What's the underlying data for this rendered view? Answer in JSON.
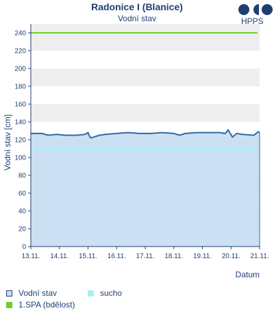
{
  "chart_data": {
    "type": "line",
    "title": "Radonice I (Blanice)",
    "subtitle": "Vodní stav",
    "xlabel": "Datum",
    "ylabel": "Vodní stav [cm]",
    "xlim": [
      0,
      8
    ],
    "ylim": [
      0,
      250
    ],
    "y_ticks": [
      0,
      20,
      40,
      60,
      80,
      100,
      120,
      140,
      160,
      180,
      200,
      220,
      240
    ],
    "x_tick_labels": [
      "13.11.",
      "14.11.",
      "15.11.",
      "16.11.",
      "17.11.",
      "18.11.",
      "19.11.",
      "20.11.",
      "21.11."
    ],
    "grid": "alternating horizontal bands",
    "series": [
      {
        "name": "Vodní stav",
        "color": "#2f6aa6",
        "fill": "#c7ddf2",
        "x": [
          0,
          0.4,
          0.6,
          0.9,
          1.2,
          1.6,
          1.9,
          2.0,
          2.05,
          2.1,
          2.2,
          2.4,
          2.6,
          3.0,
          3.4,
          3.8,
          4.2,
          4.6,
          5.0,
          5.2,
          5.4,
          5.8,
          6.2,
          6.6,
          6.8,
          6.9,
          7.05,
          7.2,
          7.4,
          7.8,
          7.95,
          8.0
        ],
        "values": [
          127,
          127,
          125,
          126,
          125,
          125,
          126,
          128,
          124,
          122,
          123,
          125,
          126,
          127,
          128,
          127,
          127,
          128,
          127,
          125,
          127,
          128,
          128,
          128,
          127,
          131,
          123,
          127,
          126,
          125,
          129,
          128
        ]
      },
      {
        "name": "sucho",
        "color": "#a8f0f4",
        "values": [
          110
        ]
      },
      {
        "name": "1.SPA (bdělost)",
        "color": "#6ad32a",
        "values": [
          240
        ]
      }
    ],
    "legend_position": "bottom-left"
  },
  "logo": {
    "text": "HPPS"
  },
  "legend": [
    {
      "label": "Vodní stav",
      "color": "#c7ddf2",
      "border": "#1f3f73"
    },
    {
      "label": "sucho",
      "color": "#a8f0f4",
      "border": "#a8f0f4"
    },
    {
      "label": "1.SPA (bdělost)",
      "color": "#6ad32a",
      "border": "#6ad32a"
    }
  ]
}
